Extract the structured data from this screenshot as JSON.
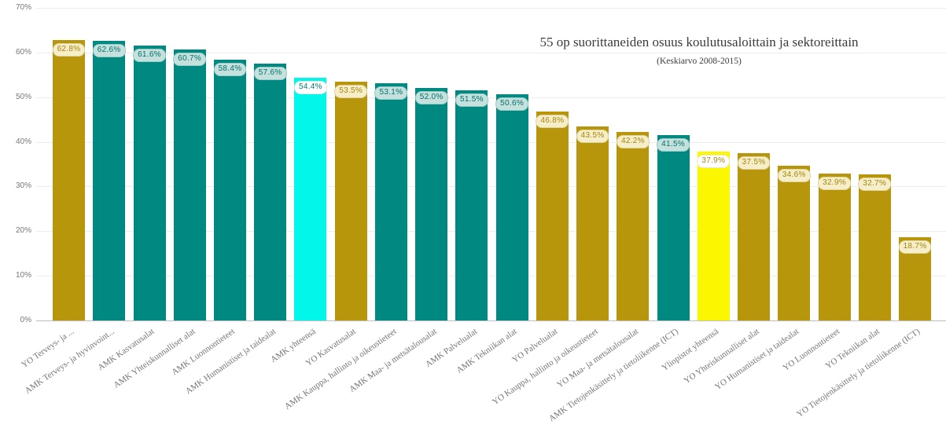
{
  "chart_data": {
    "type": "bar",
    "title": "55 op suorittaneiden osuus koulutusaloittain ja sektoreittain",
    "subtitle": "(Keskiarvo 2008-2015)",
    "xlabel": "",
    "ylabel": "",
    "ylim": [
      0,
      70
    ],
    "grid": true,
    "legend": "none",
    "yticks": [
      {
        "value": 70,
        "label": "70%"
      },
      {
        "value": 60,
        "label": "60%"
      },
      {
        "value": 50,
        "label": "50%"
      },
      {
        "value": 40,
        "label": "40%"
      },
      {
        "value": 30,
        "label": "30%"
      },
      {
        "value": 20,
        "label": "20%"
      },
      {
        "value": 10,
        "label": "10%"
      },
      {
        "value": 0,
        "label": "0%"
      }
    ],
    "categories": [
      "YO Terveys- ja ...",
      "AMK Terveys- ja hyvinvoint...",
      "AMK Kasvatusalat",
      "AMK Yhteiskunnalliset alat",
      "AMK Luonnontieteet",
      "AMK Humanistiset ja taidealat",
      "AMK yhteensä",
      "YO Kasvatusalat",
      "AMK Kauppa, hallinto ja oikeustieteet",
      "AMK Maa- ja metsätalousalat",
      "AMK Palvelualat",
      "AMK Tekniikan alat",
      "YO Palvelualat",
      "YO Kauppa, hallinto ja oikeustieteet",
      "YO Maa- ja metsätalousalat",
      "AMK Tietojenkäsittely ja tietoliikenne (ICT)",
      "Yliopistot yhteensä",
      "YO Yhteiskunnalliset alat",
      "YO Humanistiset ja taidealat",
      "YO Luonnontieteet",
      "YO Tekniikan alat",
      "YO Tietojenkäsittely ja tietoliikenne (ICT)"
    ],
    "values": [
      62.8,
      62.6,
      61.6,
      60.7,
      58.4,
      57.6,
      54.4,
      53.5,
      53.1,
      52.0,
      51.5,
      50.6,
      46.8,
      43.5,
      42.2,
      41.5,
      37.9,
      37.5,
      34.6,
      32.9,
      32.7,
      18.7
    ],
    "data_labels": [
      "62.8%",
      "62.6%",
      "61.6%",
      "60.7%",
      "58.4%",
      "57.6%",
      "54.4%",
      "53.5%",
      "53.1%",
      "52.0%",
      "51.5%",
      "50.6%",
      "46.8%",
      "43.5%",
      "42.2%",
      "41.5%",
      "37.9%",
      "37.5%",
      "34.6%",
      "32.9%",
      "32.7%",
      "18.7%"
    ],
    "bar_colors": [
      "gold",
      "teal",
      "teal",
      "teal",
      "teal",
      "teal",
      "cyan",
      "gold",
      "teal",
      "teal",
      "teal",
      "teal",
      "gold",
      "gold",
      "gold",
      "teal",
      "yellow",
      "gold",
      "gold",
      "gold",
      "gold",
      "gold"
    ],
    "palette": {
      "gold": "#B8960C",
      "teal": "#008980",
      "cyan": "#00F7EA",
      "yellow": "#FBF700"
    },
    "value_label_styles": {
      "gold": {
        "bg": "#F5EEC9",
        "text": "#A5850D",
        "border": "#DFD49E"
      },
      "teal": {
        "bg": "#C4E1DD",
        "text": "#06706B",
        "border": "#98CBC6"
      },
      "cyan": {
        "bg": "#FFFFFF",
        "text": "#067A73",
        "border": "#E2E2E2"
      },
      "yellow": {
        "bg": "#FFFFFF",
        "text": "#A5850D",
        "border": "#EDE6C8"
      }
    },
    "colors": {
      "gridline": "#EDEDED",
      "axis_line": "#BEBEBE",
      "y_tick_text": "#777777",
      "category_text": "#757575",
      "title_text": "#3B3B3B"
    }
  }
}
